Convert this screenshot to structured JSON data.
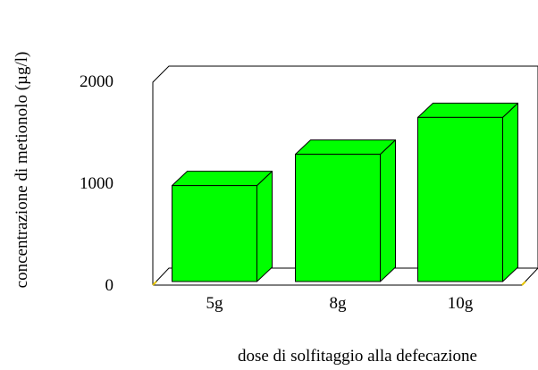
{
  "chart_data": {
    "type": "bar",
    "title": "",
    "xlabel": "dose di solfitaggio alla defecazione",
    "ylabel": "concentrazione di metionolo (µg/l)",
    "categories": [
      "5g",
      "8g",
      "10g"
    ],
    "series": [
      {
        "values": [
          950,
          1260,
          1625
        ]
      }
    ],
    "ylim": [
      0,
      2000
    ],
    "yticks": [
      "0",
      "1000",
      "2000"
    ],
    "bar_color": "#00ff00",
    "grid": false,
    "legend": "none",
    "three_d": true
  }
}
